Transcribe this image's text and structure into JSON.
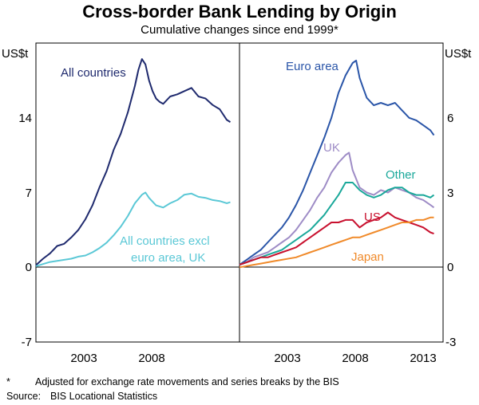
{
  "title": "Cross-border Bank Lending by Origin",
  "subtitle": "Cumulative changes since end 1999*",
  "footnote_marker": "*",
  "footnote": "Adjusted for exchange rate movements and series breaks by the BIS",
  "source_label": "Source:",
  "source": "BIS Locational Statistics",
  "colors": {
    "navy": "#1f2a6e",
    "cyan": "#5bc8d6",
    "blue": "#2a55a8",
    "purple": "#9e8cc6",
    "teal": "#1aa89a",
    "red": "#c8102e",
    "orange": "#f08a2a"
  },
  "chart_data": [
    {
      "type": "line",
      "panel": "left",
      "ylabel": "US$t",
      "ylim": [
        -7,
        21
      ],
      "yticks": [
        "-7",
        "0",
        "7",
        "14"
      ],
      "xlim": [
        2000.0,
        2014.4
      ],
      "xticks": [
        "2003",
        "2008"
      ],
      "grid": false,
      "series": [
        {
          "name": "All countries",
          "color": "navy",
          "x": [
            2000.0,
            2000.5,
            2001.0,
            2001.5,
            2002.0,
            2002.5,
            2003.0,
            2003.5,
            2004.0,
            2004.5,
            2005.0,
            2005.5,
            2006.0,
            2006.5,
            2007.0,
            2007.25,
            2007.5,
            2007.75,
            2008.0,
            2008.25,
            2008.5,
            2008.75,
            2009.0,
            2009.5,
            2010.0,
            2010.5,
            2011.0,
            2011.5,
            2012.0,
            2012.5,
            2013.0,
            2013.5,
            2013.75
          ],
          "y": [
            0.2,
            0.8,
            1.3,
            2.0,
            2.2,
            2.8,
            3.5,
            4.5,
            5.8,
            7.5,
            9.0,
            11.0,
            12.5,
            14.5,
            17.0,
            18.5,
            19.5,
            19.0,
            17.5,
            16.5,
            15.8,
            15.5,
            15.3,
            16.0,
            16.2,
            16.5,
            16.8,
            16.0,
            15.8,
            15.2,
            14.8,
            13.8,
            13.6
          ]
        },
        {
          "name": "All countries excl euro area, UK",
          "color": "cyan",
          "x": [
            2000.0,
            2000.5,
            2001.0,
            2001.5,
            2002.0,
            2002.5,
            2003.0,
            2003.5,
            2004.0,
            2004.5,
            2005.0,
            2005.5,
            2006.0,
            2006.5,
            2007.0,
            2007.5,
            2007.75,
            2008.0,
            2008.5,
            2009.0,
            2009.5,
            2010.0,
            2010.5,
            2011.0,
            2011.5,
            2012.0,
            2012.5,
            2013.0,
            2013.5,
            2013.75
          ],
          "y": [
            0.1,
            0.3,
            0.5,
            0.6,
            0.7,
            0.8,
            1.0,
            1.1,
            1.4,
            1.8,
            2.3,
            3.0,
            3.8,
            4.8,
            6.0,
            6.8,
            7.0,
            6.5,
            5.8,
            5.6,
            6.0,
            6.3,
            6.8,
            6.9,
            6.6,
            6.5,
            6.3,
            6.2,
            6.0,
            6.1
          ]
        }
      ],
      "annotations": [
        "All countries",
        "All countries excl",
        "euro area, UK"
      ]
    },
    {
      "type": "line",
      "panel": "right",
      "ylabel": "US$t",
      "ylim": [
        -3,
        9
      ],
      "yticks": [
        "-3",
        "0",
        "3",
        "6"
      ],
      "xlim": [
        2000.0,
        2014.4
      ],
      "xticks": [
        "2003",
        "2008",
        "2013"
      ],
      "grid": false,
      "series": [
        {
          "name": "Euro area",
          "color": "blue",
          "x": [
            2000.0,
            2000.5,
            2001.0,
            2001.5,
            2002.0,
            2002.5,
            2003.0,
            2003.5,
            2004.0,
            2004.5,
            2005.0,
            2005.5,
            2006.0,
            2006.5,
            2007.0,
            2007.5,
            2008.0,
            2008.25,
            2008.5,
            2008.75,
            2009.0,
            2009.5,
            2010.0,
            2010.5,
            2011.0,
            2011.5,
            2012.0,
            2012.5,
            2013.0,
            2013.5,
            2013.75
          ],
          "y": [
            0.1,
            0.3,
            0.5,
            0.7,
            1.0,
            1.3,
            1.6,
            2.0,
            2.5,
            3.1,
            3.8,
            4.5,
            5.2,
            6.0,
            7.0,
            7.7,
            8.2,
            8.3,
            7.6,
            7.2,
            6.8,
            6.5,
            6.6,
            6.5,
            6.6,
            6.3,
            6.0,
            5.9,
            5.7,
            5.5,
            5.3
          ]
        },
        {
          "name": "UK",
          "color": "purple",
          "x": [
            2000.0,
            2000.5,
            2001.0,
            2001.5,
            2002.0,
            2002.5,
            2003.0,
            2003.5,
            2004.0,
            2004.5,
            2005.0,
            2005.5,
            2006.0,
            2006.5,
            2007.0,
            2007.5,
            2007.75,
            2008.0,
            2008.5,
            2009.0,
            2009.5,
            2010.0,
            2010.5,
            2011.0,
            2011.5,
            2012.0,
            2012.5,
            2013.0,
            2013.5,
            2013.75
          ],
          "y": [
            0.1,
            0.2,
            0.4,
            0.5,
            0.6,
            0.8,
            1.0,
            1.2,
            1.5,
            1.9,
            2.3,
            2.8,
            3.2,
            3.8,
            4.2,
            4.5,
            4.6,
            3.9,
            3.2,
            3.0,
            2.9,
            3.1,
            3.0,
            3.2,
            3.1,
            3.0,
            2.8,
            2.7,
            2.5,
            2.4
          ]
        },
        {
          "name": "Other",
          "color": "teal",
          "x": [
            2000.0,
            2000.5,
            2001.0,
            2001.5,
            2002.0,
            2002.5,
            2003.0,
            2003.5,
            2004.0,
            2004.5,
            2005.0,
            2005.5,
            2006.0,
            2006.5,
            2007.0,
            2007.5,
            2008.0,
            2008.5,
            2009.0,
            2009.5,
            2010.0,
            2010.5,
            2011.0,
            2011.5,
            2012.0,
            2012.5,
            2013.0,
            2013.5,
            2013.75
          ],
          "y": [
            0.1,
            0.2,
            0.3,
            0.4,
            0.5,
            0.6,
            0.7,
            0.9,
            1.1,
            1.3,
            1.5,
            1.8,
            2.1,
            2.5,
            2.9,
            3.4,
            3.4,
            3.1,
            2.9,
            2.8,
            2.9,
            3.1,
            3.2,
            3.2,
            3.0,
            2.9,
            2.9,
            2.8,
            2.9
          ]
        },
        {
          "name": "US",
          "color": "red",
          "x": [
            2000.0,
            2000.5,
            2001.0,
            2001.5,
            2002.0,
            2002.5,
            2003.0,
            2003.5,
            2004.0,
            2004.5,
            2005.0,
            2005.5,
            2006.0,
            2006.5,
            2007.0,
            2007.5,
            2008.0,
            2008.5,
            2009.0,
            2009.5,
            2010.0,
            2010.5,
            2011.0,
            2011.5,
            2012.0,
            2012.5,
            2013.0,
            2013.5,
            2013.75
          ],
          "y": [
            0.1,
            0.2,
            0.3,
            0.4,
            0.4,
            0.5,
            0.6,
            0.7,
            0.8,
            1.0,
            1.2,
            1.4,
            1.6,
            1.8,
            1.8,
            1.9,
            1.9,
            1.6,
            1.8,
            1.9,
            2.0,
            2.2,
            2.0,
            1.9,
            1.8,
            1.7,
            1.6,
            1.4,
            1.35
          ]
        },
        {
          "name": "Japan",
          "color": "orange",
          "x": [
            2000.0,
            2000.5,
            2001.0,
            2001.5,
            2002.0,
            2002.5,
            2003.0,
            2003.5,
            2004.0,
            2004.5,
            2005.0,
            2005.5,
            2006.0,
            2006.5,
            2007.0,
            2007.5,
            2008.0,
            2008.5,
            2009.0,
            2009.5,
            2010.0,
            2010.5,
            2011.0,
            2011.5,
            2012.0,
            2012.5,
            2013.0,
            2013.5,
            2013.75
          ],
          "y": [
            0.0,
            0.05,
            0.1,
            0.15,
            0.2,
            0.25,
            0.3,
            0.35,
            0.4,
            0.5,
            0.6,
            0.7,
            0.8,
            0.9,
            1.0,
            1.1,
            1.2,
            1.2,
            1.3,
            1.4,
            1.5,
            1.6,
            1.7,
            1.8,
            1.8,
            1.9,
            1.9,
            2.0,
            2.0
          ]
        }
      ],
      "annotations": [
        "Euro area",
        "UK",
        "Other",
        "US",
        "Japan"
      ]
    }
  ]
}
